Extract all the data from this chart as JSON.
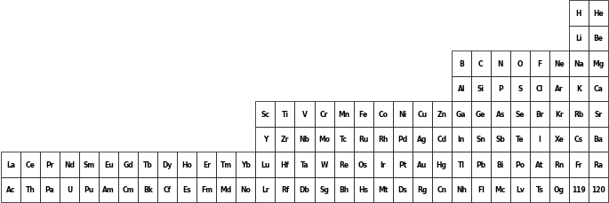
{
  "fig_width": 6.85,
  "fig_height": 2.3,
  "dpi": 100,
  "font_size": 5.5,
  "background": "#ffffff",
  "border_color": "#000000",
  "text_color": "#000000",
  "num_cols": 31,
  "num_rows": 8,
  "elements": [
    {
      "symbol": "H",
      "col": 29,
      "row": 0
    },
    {
      "symbol": "He",
      "col": 30,
      "row": 0
    },
    {
      "symbol": "Li",
      "col": 29,
      "row": 1
    },
    {
      "symbol": "Be",
      "col": 30,
      "row": 1
    },
    {
      "symbol": "B",
      "col": 23,
      "row": 2
    },
    {
      "symbol": "C",
      "col": 24,
      "row": 2
    },
    {
      "symbol": "N",
      "col": 25,
      "row": 2
    },
    {
      "symbol": "O",
      "col": 26,
      "row": 2
    },
    {
      "symbol": "F",
      "col": 27,
      "row": 2
    },
    {
      "symbol": "Ne",
      "col": 28,
      "row": 2
    },
    {
      "symbol": "Na",
      "col": 29,
      "row": 2
    },
    {
      "symbol": "Mg",
      "col": 30,
      "row": 2
    },
    {
      "symbol": "Al",
      "col": 23,
      "row": 3
    },
    {
      "symbol": "Si",
      "col": 24,
      "row": 3
    },
    {
      "symbol": "P",
      "col": 25,
      "row": 3
    },
    {
      "symbol": "S",
      "col": 26,
      "row": 3
    },
    {
      "symbol": "Cl",
      "col": 27,
      "row": 3
    },
    {
      "symbol": "Ar",
      "col": 28,
      "row": 3
    },
    {
      "symbol": "K",
      "col": 29,
      "row": 3
    },
    {
      "symbol": "Ca",
      "col": 30,
      "row": 3
    },
    {
      "symbol": "Sc",
      "col": 13,
      "row": 4
    },
    {
      "symbol": "Ti",
      "col": 14,
      "row": 4
    },
    {
      "symbol": "V",
      "col": 15,
      "row": 4
    },
    {
      "symbol": "Cr",
      "col": 16,
      "row": 4
    },
    {
      "symbol": "Mn",
      "col": 17,
      "row": 4
    },
    {
      "symbol": "Fe",
      "col": 18,
      "row": 4
    },
    {
      "symbol": "Co",
      "col": 19,
      "row": 4
    },
    {
      "symbol": "Ni",
      "col": 20,
      "row": 4
    },
    {
      "symbol": "Cu",
      "col": 21,
      "row": 4
    },
    {
      "symbol": "Zn",
      "col": 22,
      "row": 4
    },
    {
      "symbol": "Ga",
      "col": 23,
      "row": 4
    },
    {
      "symbol": "Ge",
      "col": 24,
      "row": 4
    },
    {
      "symbol": "As",
      "col": 25,
      "row": 4
    },
    {
      "symbol": "Se",
      "col": 26,
      "row": 4
    },
    {
      "symbol": "Br",
      "col": 27,
      "row": 4
    },
    {
      "symbol": "Kr",
      "col": 28,
      "row": 4
    },
    {
      "symbol": "Rb",
      "col": 29,
      "row": 4
    },
    {
      "symbol": "Sr",
      "col": 30,
      "row": 4
    },
    {
      "symbol": "Y",
      "col": 13,
      "row": 5
    },
    {
      "symbol": "Zr",
      "col": 14,
      "row": 5
    },
    {
      "symbol": "Nb",
      "col": 15,
      "row": 5
    },
    {
      "symbol": "Mo",
      "col": 16,
      "row": 5
    },
    {
      "symbol": "Tc",
      "col": 17,
      "row": 5
    },
    {
      "symbol": "Ru",
      "col": 18,
      "row": 5
    },
    {
      "symbol": "Rh",
      "col": 19,
      "row": 5
    },
    {
      "symbol": "Pd",
      "col": 20,
      "row": 5
    },
    {
      "symbol": "Ag",
      "col": 21,
      "row": 5
    },
    {
      "symbol": "Cd",
      "col": 22,
      "row": 5
    },
    {
      "symbol": "In",
      "col": 23,
      "row": 5
    },
    {
      "symbol": "Sn",
      "col": 24,
      "row": 5
    },
    {
      "symbol": "Sb",
      "col": 25,
      "row": 5
    },
    {
      "symbol": "Te",
      "col": 26,
      "row": 5
    },
    {
      "symbol": "I",
      "col": 27,
      "row": 5
    },
    {
      "symbol": "Xe",
      "col": 28,
      "row": 5
    },
    {
      "symbol": "Cs",
      "col": 29,
      "row": 5
    },
    {
      "symbol": "Ba",
      "col": 30,
      "row": 5
    },
    {
      "symbol": "La",
      "col": 0,
      "row": 6
    },
    {
      "symbol": "Ce",
      "col": 1,
      "row": 6
    },
    {
      "symbol": "Pr",
      "col": 2,
      "row": 6
    },
    {
      "symbol": "Nd",
      "col": 3,
      "row": 6
    },
    {
      "symbol": "Sm",
      "col": 4,
      "row": 6
    },
    {
      "symbol": "Eu",
      "col": 5,
      "row": 6
    },
    {
      "symbol": "Gd",
      "col": 6,
      "row": 6
    },
    {
      "symbol": "Tb",
      "col": 7,
      "row": 6
    },
    {
      "symbol": "Dy",
      "col": 8,
      "row": 6
    },
    {
      "symbol": "Ho",
      "col": 9,
      "row": 6
    },
    {
      "symbol": "Er",
      "col": 10,
      "row": 6
    },
    {
      "symbol": "Tm",
      "col": 11,
      "row": 6
    },
    {
      "symbol": "Yb",
      "col": 12,
      "row": 6
    },
    {
      "symbol": "Lu",
      "col": 13,
      "row": 6
    },
    {
      "symbol": "Hf",
      "col": 14,
      "row": 6
    },
    {
      "symbol": "Ta",
      "col": 15,
      "row": 6
    },
    {
      "symbol": "W",
      "col": 16,
      "row": 6
    },
    {
      "symbol": "Re",
      "col": 17,
      "row": 6
    },
    {
      "symbol": "Os",
      "col": 18,
      "row": 6
    },
    {
      "symbol": "Ir",
      "col": 19,
      "row": 6
    },
    {
      "symbol": "Pt",
      "col": 20,
      "row": 6
    },
    {
      "symbol": "Au",
      "col": 21,
      "row": 6
    },
    {
      "symbol": "Hg",
      "col": 22,
      "row": 6
    },
    {
      "symbol": "Tl",
      "col": 23,
      "row": 6
    },
    {
      "symbol": "Pb",
      "col": 24,
      "row": 6
    },
    {
      "symbol": "Bi",
      "col": 25,
      "row": 6
    },
    {
      "symbol": "Po",
      "col": 26,
      "row": 6
    },
    {
      "symbol": "At",
      "col": 27,
      "row": 6
    },
    {
      "symbol": "Rn",
      "col": 28,
      "row": 6
    },
    {
      "symbol": "Fr",
      "col": 29,
      "row": 6
    },
    {
      "symbol": "Ra",
      "col": 30,
      "row": 6
    },
    {
      "symbol": "Ac",
      "col": 0,
      "row": 7
    },
    {
      "symbol": "Th",
      "col": 1,
      "row": 7
    },
    {
      "symbol": "Pa",
      "col": 2,
      "row": 7
    },
    {
      "symbol": "U",
      "col": 3,
      "row": 7
    },
    {
      "symbol": "Pu",
      "col": 4,
      "row": 7
    },
    {
      "symbol": "Am",
      "col": 5,
      "row": 7
    },
    {
      "symbol": "Cm",
      "col": 6,
      "row": 7
    },
    {
      "symbol": "Bk",
      "col": 7,
      "row": 7
    },
    {
      "symbol": "Cf",
      "col": 8,
      "row": 7
    },
    {
      "symbol": "Es",
      "col": 9,
      "row": 7
    },
    {
      "symbol": "Fm",
      "col": 10,
      "row": 7
    },
    {
      "symbol": "Md",
      "col": 11,
      "row": 7
    },
    {
      "symbol": "No",
      "col": 12,
      "row": 7
    },
    {
      "symbol": "Lr",
      "col": 13,
      "row": 7
    },
    {
      "symbol": "Rf",
      "col": 14,
      "row": 7
    },
    {
      "symbol": "Db",
      "col": 15,
      "row": 7
    },
    {
      "symbol": "Sg",
      "col": 16,
      "row": 7
    },
    {
      "symbol": "Bh",
      "col": 17,
      "row": 7
    },
    {
      "symbol": "Hs",
      "col": 18,
      "row": 7
    },
    {
      "symbol": "Mt",
      "col": 19,
      "row": 7
    },
    {
      "symbol": "Ds",
      "col": 20,
      "row": 7
    },
    {
      "symbol": "Rg",
      "col": 21,
      "row": 7
    },
    {
      "symbol": "Cn",
      "col": 22,
      "row": 7
    },
    {
      "symbol": "Nh",
      "col": 23,
      "row": 7
    },
    {
      "symbol": "Fl",
      "col": 24,
      "row": 7
    },
    {
      "symbol": "Mc",
      "col": 25,
      "row": 7
    },
    {
      "symbol": "Lv",
      "col": 26,
      "row": 7
    },
    {
      "symbol": "Ts",
      "col": 27,
      "row": 7
    },
    {
      "symbol": "Og",
      "col": 28,
      "row": 7
    },
    {
      "symbol": "119",
      "col": 29,
      "row": 7
    },
    {
      "symbol": "120",
      "col": 30,
      "row": 7
    }
  ]
}
